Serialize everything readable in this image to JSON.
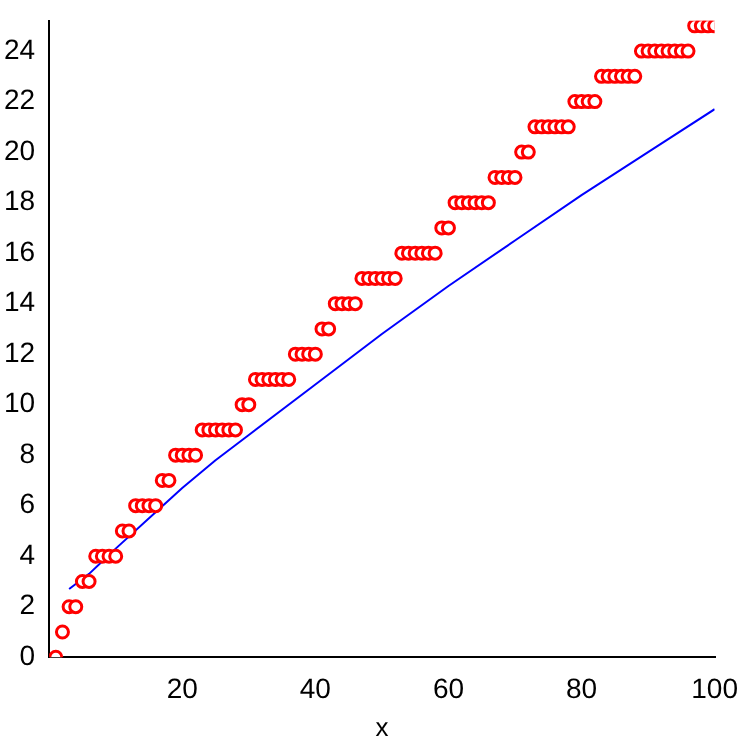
{
  "chart_data": {
    "type": "scatter",
    "xlabel": "x",
    "xlim": [
      0,
      100
    ],
    "xticks": [
      20,
      40,
      60,
      80,
      100
    ],
    "ylim": [
      0,
      25.2
    ],
    "yticks": [
      0,
      2,
      4,
      6,
      8,
      10,
      12,
      14,
      16,
      18,
      20,
      22,
      24
    ],
    "grid": false,
    "legend": false,
    "series": [
      {
        "color": "#ff0000",
        "marker": "circle",
        "x": [
          1,
          2,
          3,
          4,
          5,
          6,
          7,
          8,
          9,
          10,
          11,
          12,
          13,
          14,
          15,
          16,
          17,
          18,
          19,
          20,
          21,
          22,
          23,
          24,
          25,
          26,
          27,
          28,
          29,
          30,
          31,
          32,
          33,
          34,
          35,
          36,
          37,
          38,
          39,
          40,
          41,
          42,
          43,
          44,
          45,
          46,
          47,
          48,
          49,
          50,
          51,
          52,
          53,
          54,
          55,
          56,
          57,
          58,
          59,
          60,
          61,
          62,
          63,
          64,
          65,
          66,
          67,
          68,
          69,
          70,
          71,
          72,
          73,
          74,
          75,
          76,
          77,
          78,
          79,
          80,
          81,
          82,
          83,
          84,
          85,
          86,
          87,
          88,
          89,
          90,
          91,
          92,
          93,
          94,
          95,
          96,
          97,
          98,
          99,
          100
        ],
        "values": [
          0,
          1,
          2,
          2,
          3,
          3,
          4,
          4,
          4,
          4,
          5,
          5,
          6,
          6,
          6,
          6,
          7,
          7,
          8,
          8,
          8,
          8,
          9,
          9,
          9,
          9,
          9,
          9,
          10,
          10,
          11,
          11,
          11,
          11,
          11,
          11,
          12,
          12,
          12,
          12,
          13,
          13,
          14,
          14,
          14,
          14,
          15,
          15,
          15,
          15,
          15,
          15,
          16,
          16,
          16,
          16,
          16,
          16,
          17,
          17,
          18,
          18,
          18,
          18,
          18,
          18,
          19,
          19,
          19,
          19,
          20,
          20,
          21,
          21,
          21,
          21,
          21,
          21,
          22,
          22,
          22,
          22,
          23,
          23,
          23,
          23,
          23,
          23,
          24,
          24,
          24,
          24,
          24,
          24,
          24,
          24,
          25,
          25,
          25,
          25
        ]
      },
      {
        "type": "line",
        "color": "#0000ff",
        "marker": "none",
        "x": [
          3,
          4,
          5,
          6,
          8,
          10,
          15,
          20,
          25,
          30,
          40,
          50,
          60,
          70,
          80,
          90,
          100
        ],
        "values": [
          2.7,
          2.9,
          3.1,
          3.3,
          3.8,
          4.3,
          5.5,
          6.7,
          7.8,
          8.8,
          10.8,
          12.8,
          14.7,
          16.5,
          18.3,
          20.0,
          21.7
        ]
      }
    ]
  }
}
